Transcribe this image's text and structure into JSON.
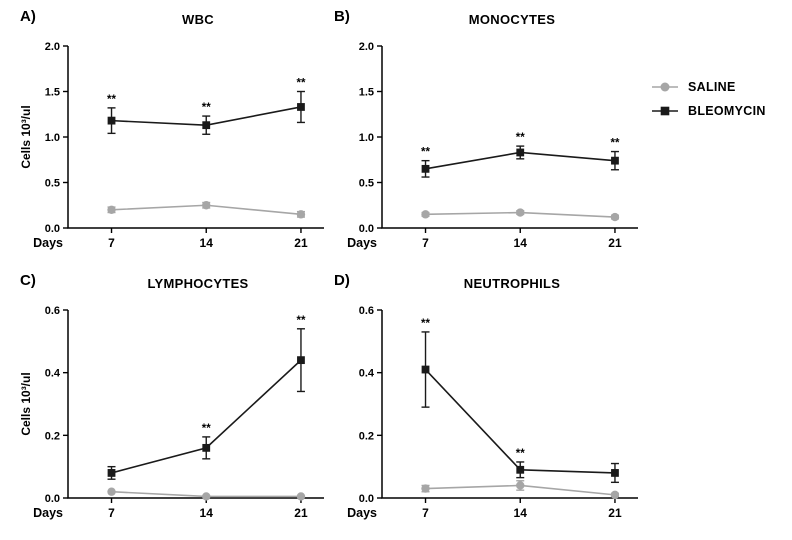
{
  "figure": {
    "background": "#ffffff"
  },
  "colors": {
    "saline": "#a6a6a6",
    "bleomycin": "#1a1a1a",
    "axis": "#000000"
  },
  "legend": {
    "items": [
      {
        "label": "SALINE",
        "marker": "circle",
        "color": "#a6a6a6"
      },
      {
        "label": "BLEOMYCIN",
        "marker": "square",
        "color": "#1a1a1a"
      }
    ]
  },
  "chart_data": [
    {
      "type": "line",
      "panel_label": "A)",
      "title": "WBC",
      "x": [
        7,
        14,
        21
      ],
      "xlabel": "Days",
      "ylabel": "Cells 10³/ul",
      "ylim": [
        0,
        2.0
      ],
      "yticks": [
        0.0,
        0.5,
        1.0,
        1.5,
        2.0
      ],
      "series": [
        {
          "name": "SALINE",
          "color": "#a6a6a6",
          "marker": "circle",
          "values": [
            0.2,
            0.25,
            0.15
          ],
          "errors": [
            0.03,
            0.03,
            0.03
          ],
          "sig": [
            "",
            "",
            ""
          ]
        },
        {
          "name": "BLEOMYCIN",
          "color": "#1a1a1a",
          "marker": "square",
          "values": [
            1.18,
            1.13,
            1.33
          ],
          "errors": [
            0.14,
            0.1,
            0.17
          ],
          "sig": [
            "**",
            "**",
            "**"
          ]
        }
      ]
    },
    {
      "type": "line",
      "panel_label": "B)",
      "title": "MONOCYTES",
      "x": [
        7,
        14,
        21
      ],
      "xlabel": "Days",
      "ylabel": "",
      "ylim": [
        0,
        2.0
      ],
      "yticks": [
        0.0,
        0.5,
        1.0,
        1.5,
        2.0
      ],
      "series": [
        {
          "name": "SALINE",
          "color": "#a6a6a6",
          "marker": "circle",
          "values": [
            0.15,
            0.17,
            0.12
          ],
          "errors": [
            0.02,
            0.02,
            0.02
          ],
          "sig": [
            "",
            "",
            ""
          ]
        },
        {
          "name": "BLEOMYCIN",
          "color": "#1a1a1a",
          "marker": "square",
          "values": [
            0.65,
            0.83,
            0.74
          ],
          "errors": [
            0.09,
            0.07,
            0.1
          ],
          "sig": [
            "**",
            "**",
            "**"
          ]
        }
      ]
    },
    {
      "type": "line",
      "panel_label": "C)",
      "title": "LYMPHOCYTES",
      "x": [
        7,
        14,
        21
      ],
      "xlabel": "Days",
      "ylabel": "Cells 10³/ul",
      "ylim": [
        0,
        0.6
      ],
      "yticks": [
        0.0,
        0.2,
        0.4,
        0.6
      ],
      "series": [
        {
          "name": "SALINE",
          "color": "#a6a6a6",
          "marker": "circle",
          "values": [
            0.02,
            0.005,
            0.005
          ],
          "errors": [
            0,
            0,
            0
          ],
          "sig": [
            "",
            "",
            ""
          ]
        },
        {
          "name": "BLEOMYCIN",
          "color": "#1a1a1a",
          "marker": "square",
          "values": [
            0.08,
            0.16,
            0.44
          ],
          "errors": [
            0.02,
            0.035,
            0.1
          ],
          "sig": [
            "",
            "**",
            "**"
          ]
        }
      ]
    },
    {
      "type": "line",
      "panel_label": "D)",
      "title": "NEUTROPHILS",
      "x": [
        7,
        14,
        21
      ],
      "xlabel": "Days",
      "ylabel": "",
      "ylim": [
        0,
        0.6
      ],
      "yticks": [
        0.0,
        0.2,
        0.4,
        0.6
      ],
      "series": [
        {
          "name": "SALINE",
          "color": "#a6a6a6",
          "marker": "circle",
          "values": [
            0.03,
            0.04,
            0.01
          ],
          "errors": [
            0.01,
            0.015,
            0.005
          ],
          "sig": [
            "",
            "",
            ""
          ]
        },
        {
          "name": "BLEOMYCIN",
          "color": "#1a1a1a",
          "marker": "square",
          "values": [
            0.41,
            0.09,
            0.08
          ],
          "errors": [
            0.12,
            0.025,
            0.03
          ],
          "sig": [
            "**",
            "**",
            ""
          ]
        }
      ]
    }
  ]
}
